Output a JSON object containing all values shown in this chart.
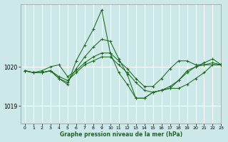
{
  "title": "Graphe pression niveau de la mer (hPa)",
  "bg_color": "#cde8e8",
  "grid_color": "#ffffff",
  "line_color": "#1a6b1a",
  "xlim": [
    -0.5,
    23
  ],
  "ylim": [
    1018.55,
    1021.6
  ],
  "yticks": [
    1019,
    1020
  ],
  "xticks": [
    0,
    1,
    2,
    3,
    4,
    5,
    6,
    7,
    8,
    9,
    10,
    11,
    12,
    13,
    14,
    15,
    16,
    17,
    18,
    19,
    20,
    21,
    22,
    23
  ],
  "series": [
    [
      1019.9,
      1019.85,
      1019.85,
      1019.9,
      1019.75,
      1019.65,
      1019.85,
      1020.05,
      1020.15,
      1020.25,
      1020.25,
      1020.05,
      1019.85,
      1019.6,
      1019.4,
      1019.35,
      1019.4,
      1019.5,
      1019.65,
      1019.85,
      1020.0,
      1020.05,
      1020.1,
      1020.05
    ],
    [
      1019.9,
      1019.85,
      1019.85,
      1019.9,
      1019.7,
      1019.6,
      1019.95,
      1020.25,
      1020.5,
      1020.7,
      1020.65,
      1020.2,
      1019.8,
      1019.2,
      1019.2,
      1019.35,
      1019.4,
      1019.45,
      1019.65,
      1019.9,
      1020.0,
      1020.1,
      1020.2,
      1020.05
    ],
    [
      1019.9,
      1019.85,
      1019.85,
      1019.9,
      1019.7,
      1019.55,
      1020.15,
      1020.55,
      1020.95,
      1021.45,
      1020.35,
      1019.85,
      1019.55,
      1019.2,
      1019.2,
      1019.35,
      1019.4,
      1019.45,
      1019.45,
      1019.55,
      1019.7,
      1019.85,
      1020.05,
      1020.05
    ],
    [
      1019.9,
      1019.85,
      1019.9,
      1020.0,
      1020.05,
      1019.75,
      1019.9,
      1020.1,
      1020.25,
      1020.35,
      1020.35,
      1020.15,
      1019.95,
      1019.7,
      1019.5,
      1019.5,
      1019.7,
      1019.95,
      1020.15,
      1020.15,
      1020.05,
      1020.05,
      1020.05,
      1020.05
    ]
  ]
}
